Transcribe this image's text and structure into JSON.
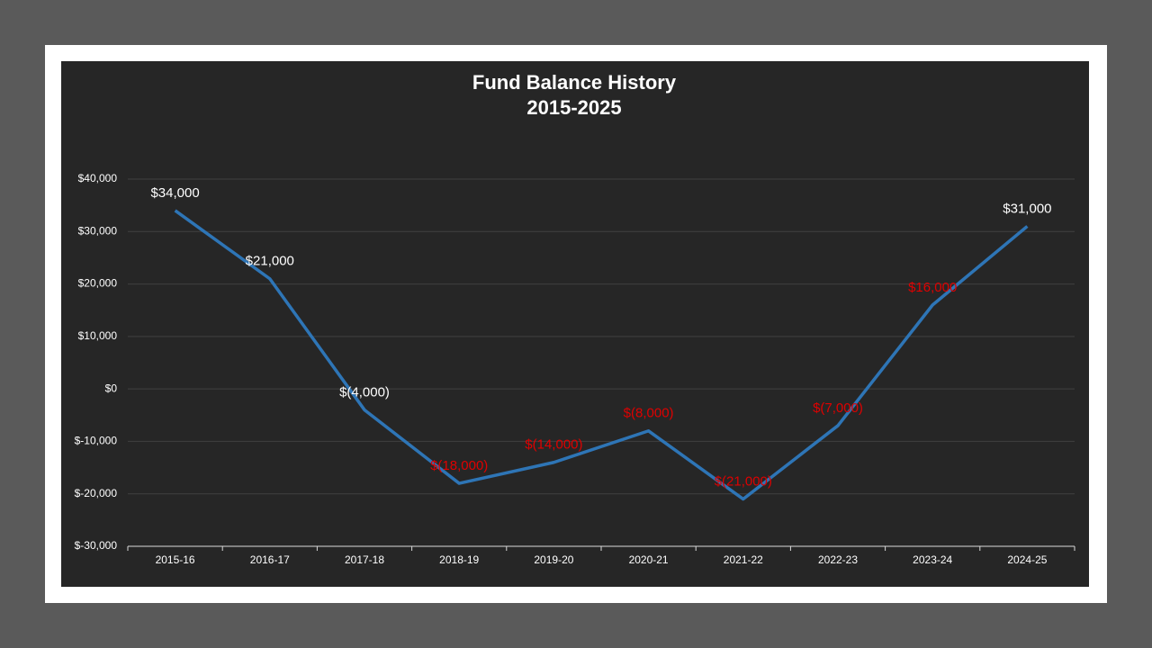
{
  "chart_data": {
    "type": "line",
    "title": "Fund Balance History",
    "subtitle": "2015-2025",
    "categories": [
      "2015-16",
      "2016-17",
      "2017-18",
      "2018-19",
      "2019-20",
      "2020-21",
      "2021-22",
      "2022-23",
      "2023-24",
      "2024-25"
    ],
    "values": [
      34000,
      21000,
      -4000,
      -18000,
      -14000,
      -8000,
      -21000,
      -7000,
      16000,
      31000
    ],
    "value_labels": [
      "$34,000",
      "$21,000",
      "$(4,000)",
      "$(18,000)",
      "$(14,000)",
      "$(8,000)",
      "$(21,000)",
      "$(7,000)",
      "$16,000",
      "$31,000"
    ],
    "value_label_colors": [
      "#ffffff",
      "#ffffff",
      "#ffffff",
      "#e00000",
      "#e00000",
      "#e00000",
      "#e00000",
      "#e00000",
      "#e00000",
      "#ffffff"
    ],
    "color": "#2e75b6",
    "ylim": [
      -30000,
      40000
    ],
    "yticks": [
      {
        "value": -30000,
        "label": "$-30,000"
      },
      {
        "value": -20000,
        "label": "$-20,000"
      },
      {
        "value": -10000,
        "label": "$-10,000"
      },
      {
        "value": 0,
        "label": "$0"
      },
      {
        "value": 10000,
        "label": "$10,000"
      },
      {
        "value": 20000,
        "label": "$20,000"
      },
      {
        "value": 30000,
        "label": "$30,000"
      },
      {
        "value": 40000,
        "label": "$40,000"
      }
    ],
    "grid": true
  }
}
